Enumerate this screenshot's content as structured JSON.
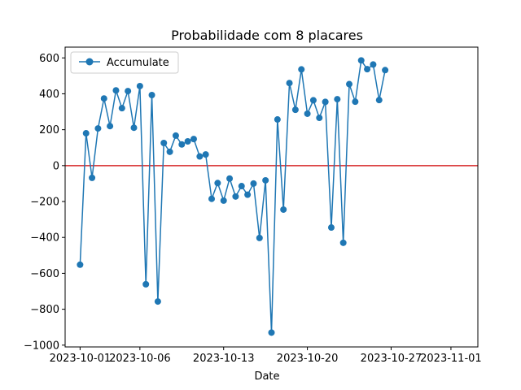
{
  "chart_data": {
    "type": "line",
    "title": "Probabilidade com 8 placares",
    "xlabel": "Date",
    "ylabel": "",
    "x_start": "2023-10-01",
    "x_step_days": 0.5,
    "xlim": [
      "2023-09-29T18:00",
      "2023-11-03T06:00"
    ],
    "ylim": [
      -1010,
      660
    ],
    "xticks": [
      "2023-10-01",
      "2023-10-06",
      "2023-10-13",
      "2023-10-20",
      "2023-10-27",
      "2023-11-01"
    ],
    "xtick_labels": [
      "2023-10-01",
      "2023-10-06",
      "2023-10-13",
      "2023-10-20",
      "2023-10-27",
      "2023-11-01"
    ],
    "yticks": [
      600,
      400,
      200,
      0,
      -200,
      -400,
      -600,
      -800,
      -1000
    ],
    "ytick_labels": [
      "600",
      "400",
      "200",
      "0",
      "−200",
      "−400",
      "−600",
      "−800",
      "−1000"
    ],
    "series": [
      {
        "name": "Accumulate",
        "color": "#1f77b4",
        "values": [
          -552,
          180,
          -68,
          207,
          374,
          220,
          419,
          320,
          415,
          211,
          443,
          -661,
          393,
          -757,
          126,
          77,
          167,
          118,
          135,
          148,
          51,
          62,
          -185,
          -97,
          -195,
          -72,
          -172,
          -114,
          -162,
          -100,
          -403,
          -82,
          -930,
          257,
          -245,
          460,
          311,
          536,
          289,
          364,
          266,
          355,
          -345,
          370,
          -430,
          454,
          356,
          586,
          537,
          563,
          365,
          532
        ]
      }
    ],
    "reference_line": {
      "y": 0,
      "color": "#d62728"
    },
    "legend": {
      "placement": "top-left",
      "entries": [
        "Accumulate"
      ]
    },
    "grid": false
  }
}
